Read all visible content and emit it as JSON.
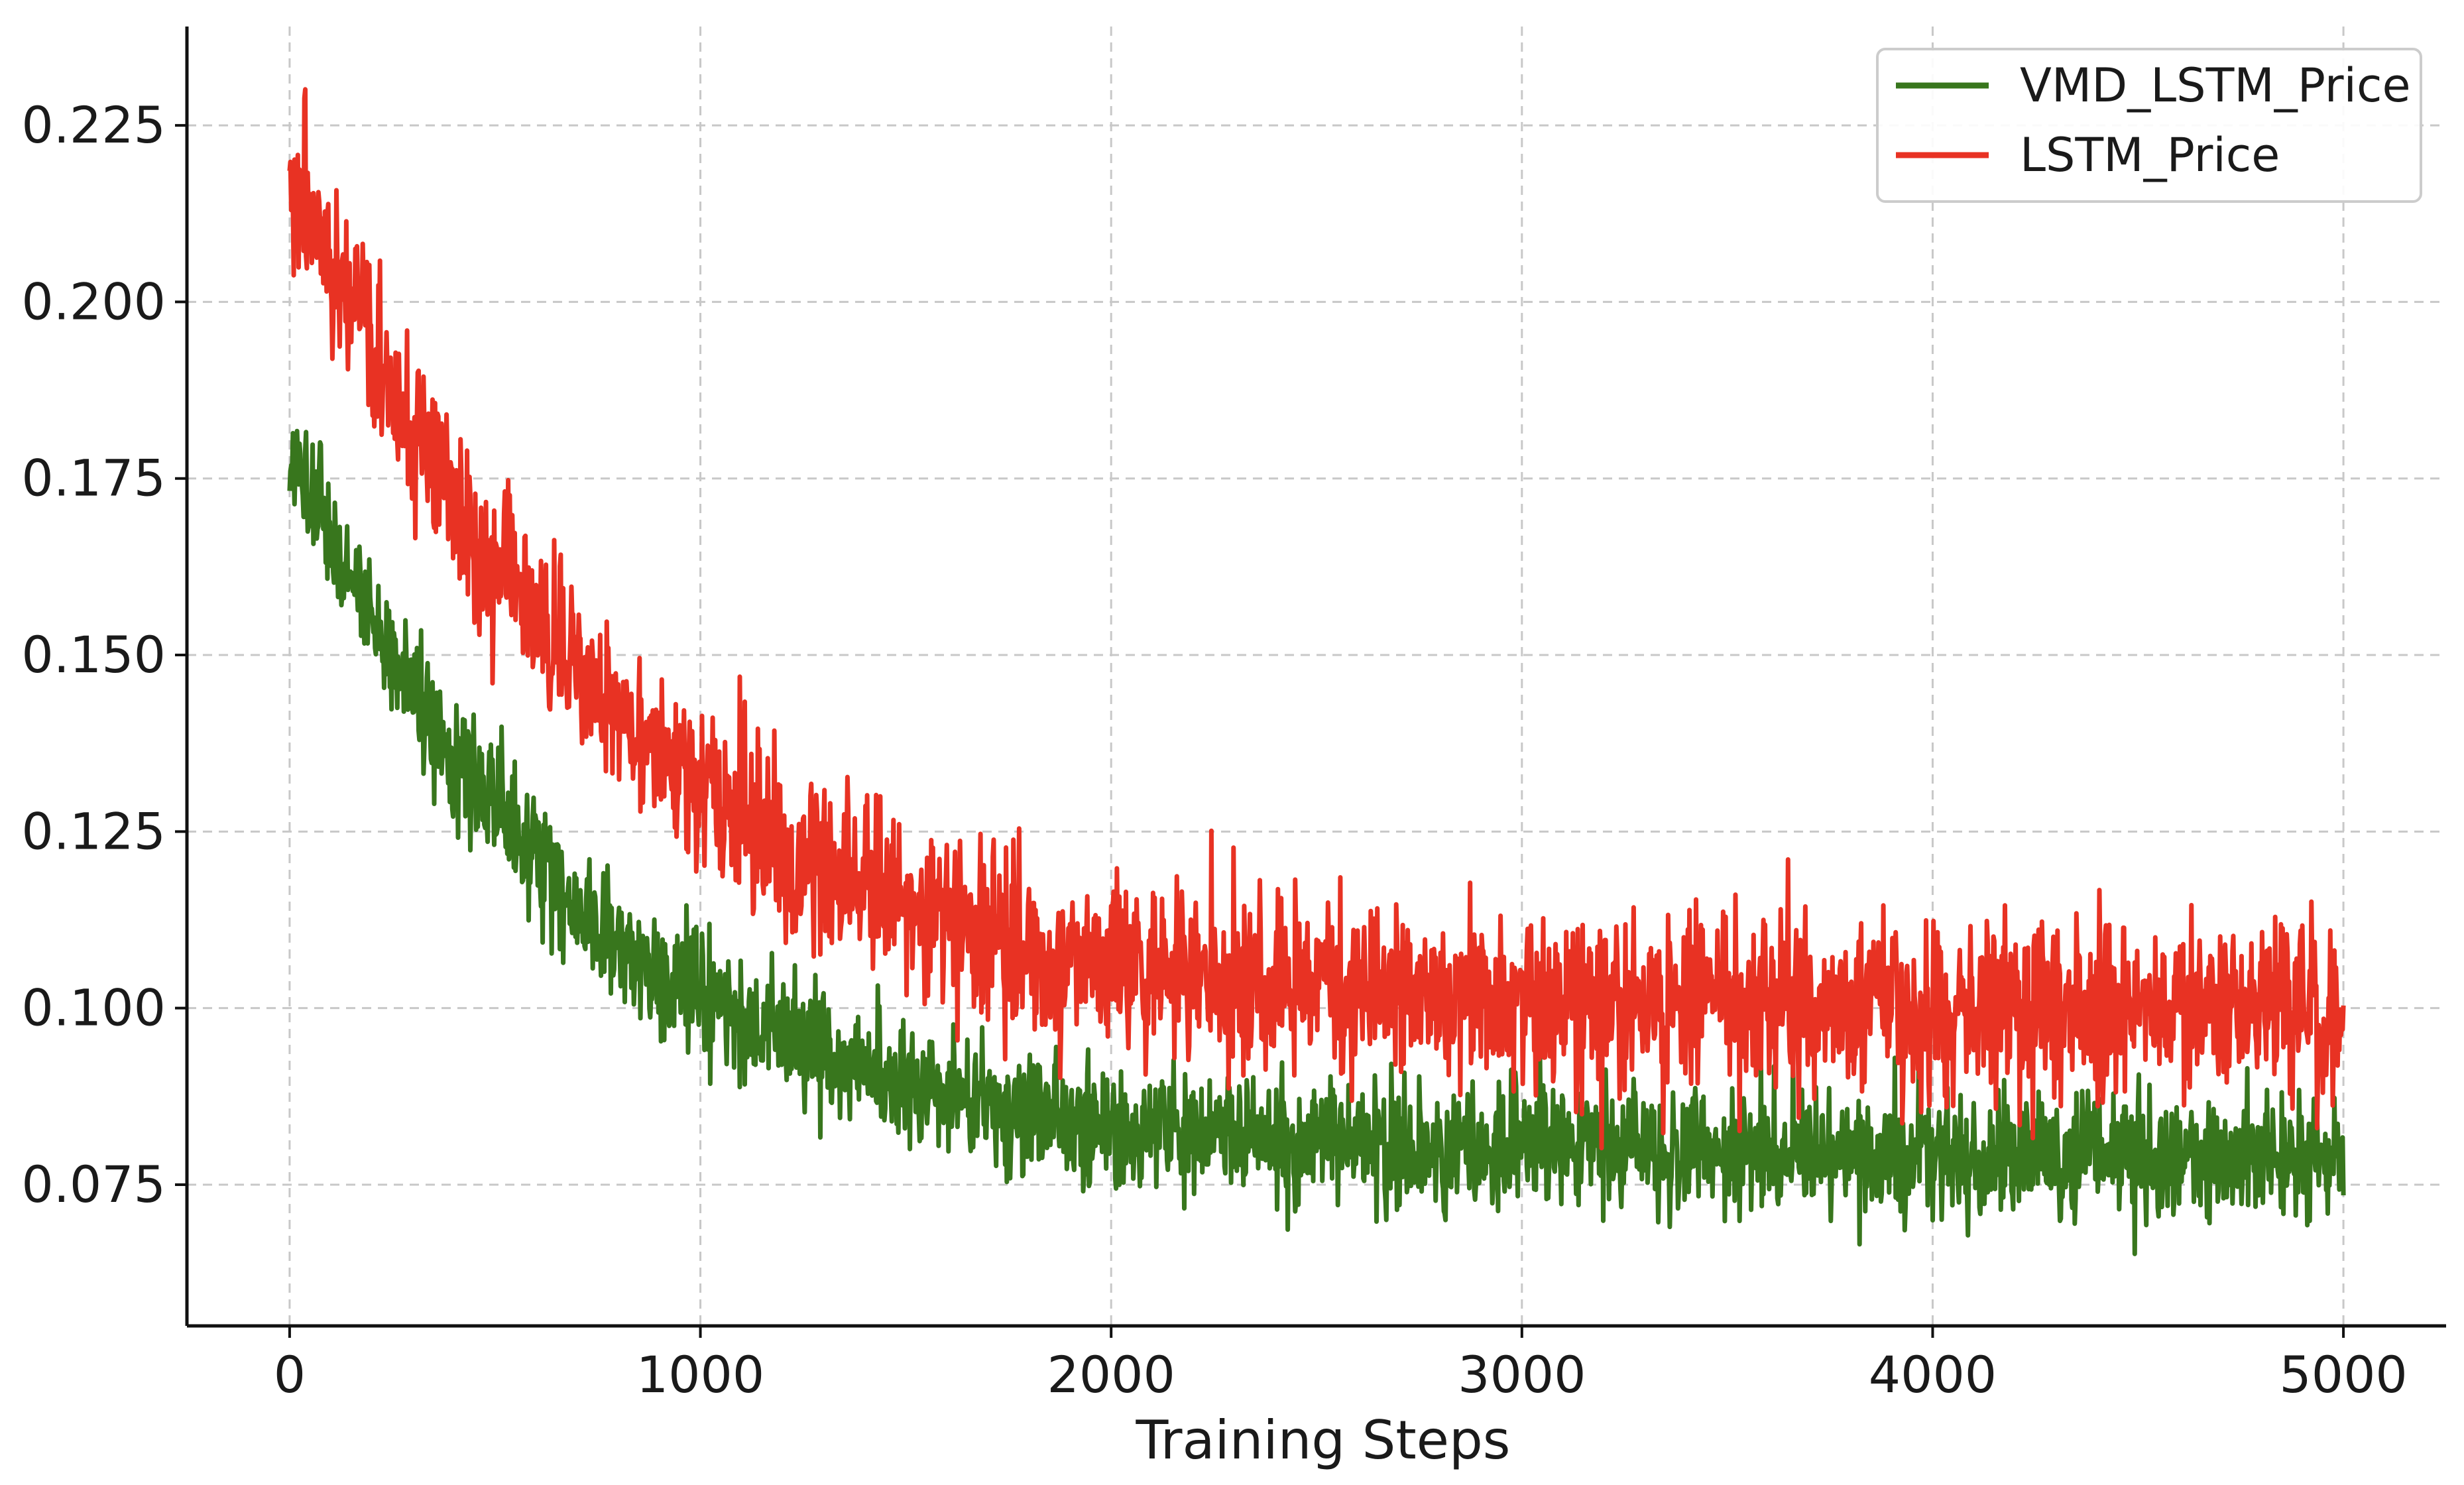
{
  "chart_data": {
    "type": "line",
    "title": "",
    "xlabel": "Training Steps",
    "ylabel": "",
    "xlim": [
      -250,
      5250
    ],
    "ylim": [
      0.055,
      0.239
    ],
    "xticks": [
      0,
      1000,
      2000,
      3000,
      4000,
      5000
    ],
    "xtick_labels": [
      "0",
      "1000",
      "2000",
      "3000",
      "4000",
      "5000"
    ],
    "yticks": [
      0.075,
      0.1,
      0.125,
      0.15,
      0.175,
      0.2,
      0.225
    ],
    "ytick_labels": [
      "0.075",
      "0.100",
      "0.125",
      "0.150",
      "0.175",
      "0.200",
      "0.225"
    ],
    "grid": true,
    "legend_position": "top-right",
    "series": [
      {
        "name": "VMD_LSTM_Price",
        "color": "#38761d",
        "x": [
          0,
          250,
          500,
          750,
          1000,
          1250,
          1500,
          1750,
          2000,
          2250,
          2500,
          2750,
          3000,
          3250,
          3500,
          3750,
          4000,
          4250,
          4500,
          4750,
          5000
        ],
        "values": [
          0.178,
          0.149,
          0.128,
          0.111,
          0.101,
          0.094,
          0.089,
          0.086,
          0.083,
          0.082,
          0.081,
          0.0805,
          0.08,
          0.08,
          0.0795,
          0.0795,
          0.079,
          0.079,
          0.079,
          0.079,
          0.079
        ],
        "noise_band": [
          0.008,
          0.008,
          0.008,
          0.008,
          0.008,
          0.008,
          0.008,
          0.008,
          0.008,
          0.008,
          0.008,
          0.008,
          0.008,
          0.008,
          0.008,
          0.008,
          0.008,
          0.008,
          0.008,
          0.008,
          0.008
        ]
      },
      {
        "name": "LSTM_Price",
        "color": "#e83223",
        "x": [
          0,
          250,
          500,
          750,
          1000,
          1250,
          1500,
          1750,
          2000,
          2250,
          2500,
          2750,
          3000,
          3250,
          3500,
          3750,
          4000,
          4250,
          4500,
          4750,
          5000
        ],
        "values": [
          0.219,
          0.187,
          0.162,
          0.144,
          0.131,
          0.121,
          0.114,
          0.109,
          0.106,
          0.104,
          0.103,
          0.102,
          0.1015,
          0.101,
          0.101,
          0.1005,
          0.1,
          0.1,
          0.1,
          0.1,
          0.1
        ],
        "noise_band": [
          0.011,
          0.011,
          0.011,
          0.011,
          0.011,
          0.011,
          0.011,
          0.011,
          0.011,
          0.011,
          0.011,
          0.011,
          0.011,
          0.011,
          0.011,
          0.011,
          0.011,
          0.011,
          0.011,
          0.011,
          0.011
        ]
      }
    ]
  }
}
